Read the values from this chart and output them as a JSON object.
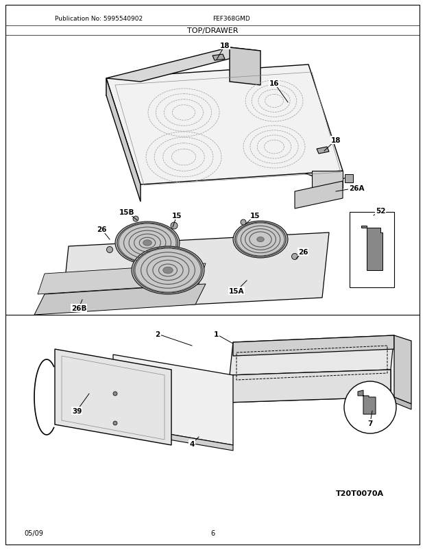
{
  "title": "TOP/DRAWER",
  "model": "FEF368GMD",
  "publication": "Publication No: 5995540902",
  "diagram_id": "T20T0070A",
  "date": "05/09",
  "page": "6",
  "bg_color": "#ffffff",
  "text_color": "#000000",
  "gray_fill": "#e0e0e0",
  "dark_gray": "#888888",
  "light_gray": "#f0f0f0"
}
